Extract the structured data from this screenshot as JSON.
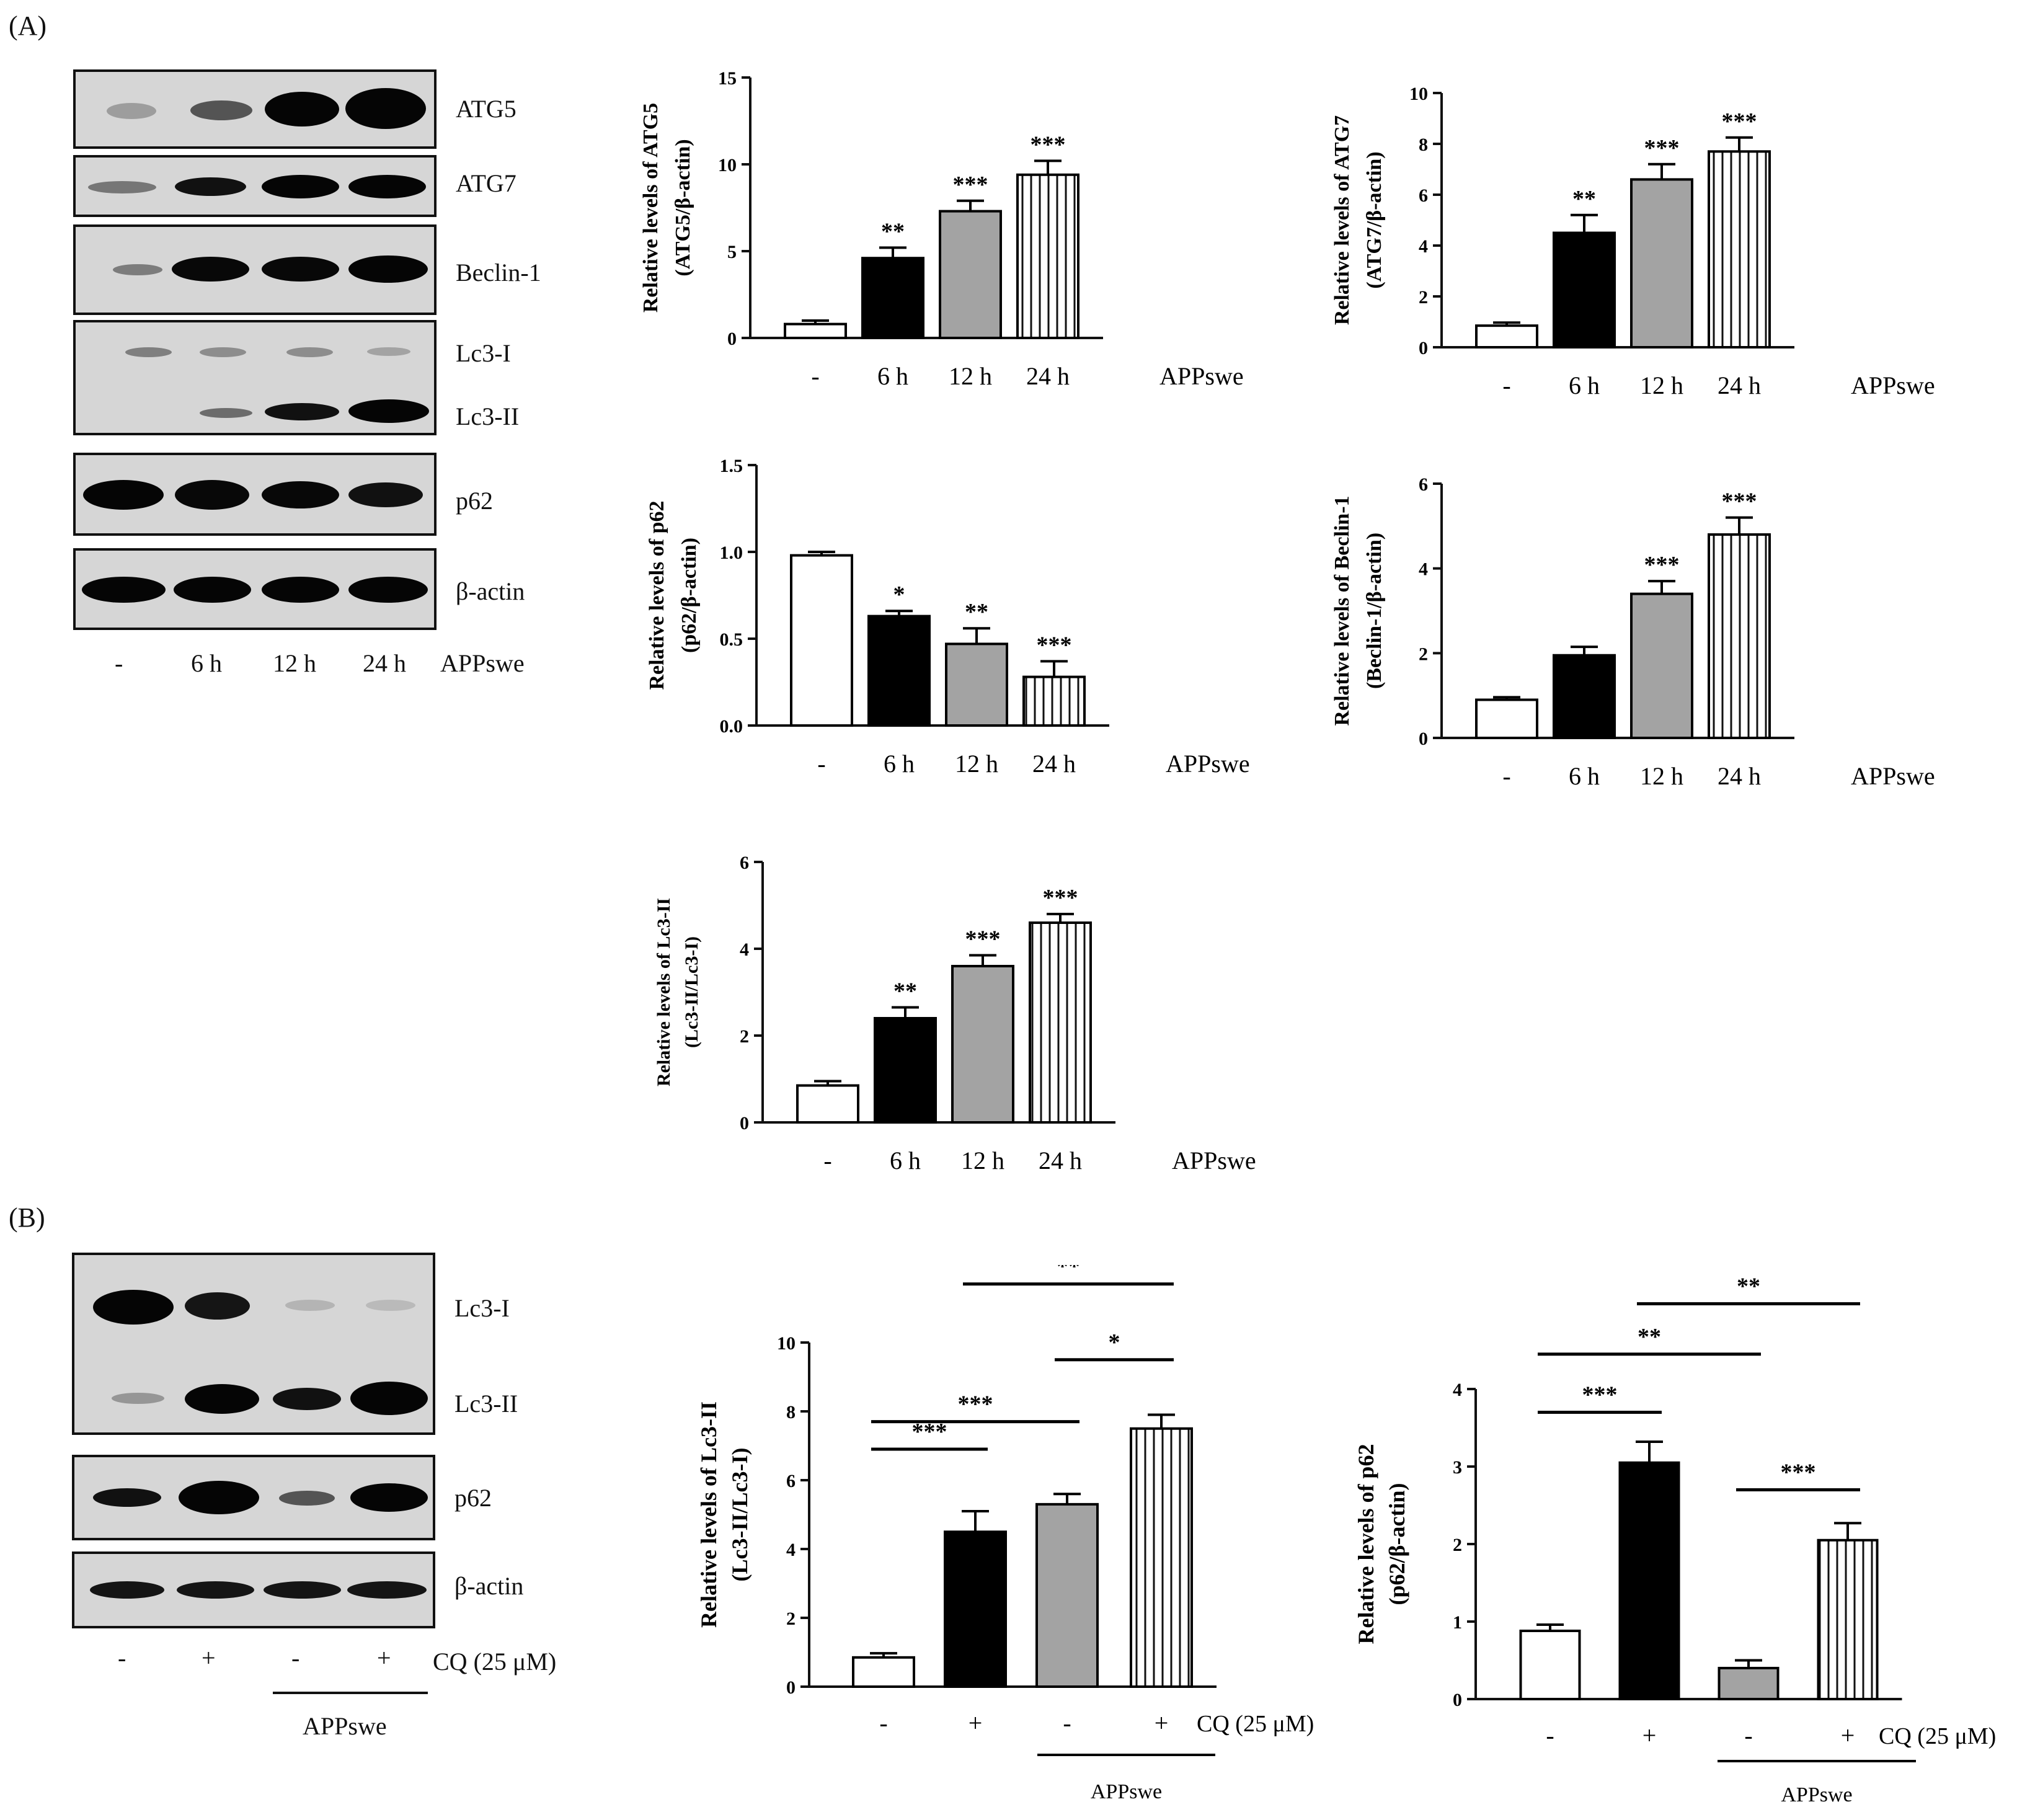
{
  "panels": {
    "a": "(A)",
    "b": "(B)"
  },
  "blotA": {
    "proteins": [
      "ATG5",
      "ATG7",
      "Beclin-1",
      "Lc3-I",
      "Lc3-II",
      "p62",
      "β-actin"
    ],
    "lanes": [
      "-",
      "6 h",
      "12 h",
      "24 h"
    ],
    "treatment": "APPswe"
  },
  "blotB": {
    "proteins": [
      "Lc3-I",
      "Lc3-II",
      "p62",
      "β-actin"
    ],
    "lanes": [
      "-",
      "+",
      "-",
      "+"
    ],
    "cq_label": "CQ (25 μM)",
    "group_label": "APPswe"
  },
  "colors": {
    "black": "#000000",
    "gray": "#a3a3a3",
    "white": "#ffffff",
    "axis": "#111111"
  },
  "chart_data": [
    {
      "id": "atg5",
      "type": "bar",
      "ylabel": [
        "Relative levels of ATG5",
        "(ATG5/β-actin)"
      ],
      "categories": [
        "-",
        "6 h",
        "12 h",
        "24 h"
      ],
      "values": [
        0.8,
        4.6,
        7.3,
        9.4
      ],
      "errors": [
        0.2,
        0.6,
        0.6,
        0.8
      ],
      "sig": [
        "",
        "**",
        "***",
        "***"
      ],
      "ylim": [
        0,
        15
      ],
      "yticks": [
        0,
        5,
        10,
        15
      ],
      "yticklabels": [
        "0",
        "5",
        "10",
        "15"
      ],
      "xlabel": "APPswe"
    },
    {
      "id": "atg7",
      "type": "bar",
      "ylabel": [
        "Relative levels of ATG7",
        "(ATG7/β-actin)"
      ],
      "categories": [
        "-",
        "6 h",
        "12 h",
        "24 h"
      ],
      "values": [
        0.85,
        4.5,
        6.6,
        7.7
      ],
      "errors": [
        0.12,
        0.7,
        0.6,
        0.55
      ],
      "sig": [
        "",
        "**",
        "***",
        "***"
      ],
      "ylim": [
        0,
        10
      ],
      "yticks": [
        0,
        2,
        4,
        6,
        8,
        10
      ],
      "yticklabels": [
        "0",
        "2",
        "4",
        "6",
        "8",
        "10"
      ],
      "xlabel": "APPswe"
    },
    {
      "id": "p62a",
      "type": "bar",
      "ylabel": [
        "Relative levels of p62",
        "(p62/β-actin)"
      ],
      "categories": [
        "-",
        "6 h",
        "12 h",
        "24 h"
      ],
      "values": [
        0.98,
        0.63,
        0.47,
        0.28
      ],
      "errors": [
        0.02,
        0.03,
        0.09,
        0.09
      ],
      "sig": [
        "",
        "*",
        "**",
        "***"
      ],
      "ylim": [
        0,
        1.5
      ],
      "yticks": [
        0,
        0.5,
        1.0,
        1.5
      ],
      "yticklabels": [
        "0.0",
        "0.5",
        "1.0",
        "1.5"
      ],
      "xlabel": "APPswe"
    },
    {
      "id": "beclin",
      "type": "bar",
      "ylabel": [
        "Relative levels of Beclin-1",
        "(Beclin-1/β-actin)"
      ],
      "categories": [
        "-",
        "6 h",
        "12 h",
        "24 h"
      ],
      "values": [
        0.9,
        1.95,
        3.4,
        4.8
      ],
      "errors": [
        0.06,
        0.2,
        0.3,
        0.4
      ],
      "sig": [
        "",
        "",
        "***",
        "***"
      ],
      "ylim": [
        0,
        6
      ],
      "yticks": [
        0,
        2,
        4,
        6
      ],
      "yticklabels": [
        "0",
        "2",
        "4",
        "6"
      ],
      "xlabel": "APPswe"
    },
    {
      "id": "lc3a",
      "type": "bar",
      "ylabel": [
        "Relative levels of Lc3-II",
        "(Lc3-II/Lc3-I)"
      ],
      "categories": [
        "-",
        "6 h",
        "12 h",
        "24 h"
      ],
      "values": [
        0.85,
        2.4,
        3.6,
        4.6
      ],
      "errors": [
        0.1,
        0.25,
        0.25,
        0.2
      ],
      "sig": [
        "",
        "**",
        "***",
        "***"
      ],
      "ylim": [
        0,
        6
      ],
      "yticks": [
        0,
        2,
        4,
        6
      ],
      "yticklabels": [
        "0",
        "2",
        "4",
        "6"
      ],
      "xlabel": "APPswe"
    },
    {
      "id": "lc3b",
      "type": "bar",
      "ylabel": [
        "Relative levels of Lc3-II",
        "(Lc3-II/Lc3-I)"
      ],
      "categories": [
        "-",
        "+",
        "-",
        "+"
      ],
      "values": [
        0.85,
        4.5,
        5.3,
        7.5
      ],
      "errors": [
        0.12,
        0.6,
        0.3,
        0.4
      ],
      "ylim": [
        0,
        10
      ],
      "yticks": [
        0,
        2,
        4,
        6,
        8,
        10
      ],
      "yticklabels": [
        "0",
        "2",
        "4",
        "6",
        "8",
        "10"
      ],
      "xlabel": "CQ (25 μM)",
      "group_label": "APPswe",
      "comparisons": [
        {
          "from": 0,
          "to": 1,
          "label": "***"
        },
        {
          "from": 0,
          "to": 2,
          "label": "***"
        },
        {
          "from": 2,
          "to": 3,
          "label": "*"
        },
        {
          "from": 1,
          "to": 3,
          "label": "**"
        }
      ]
    },
    {
      "id": "p62b",
      "type": "bar",
      "ylabel": [
        "Relative levels of p62",
        "(p62/β-actin)"
      ],
      "categories": [
        "-",
        "+",
        "-",
        "+"
      ],
      "values": [
        0.88,
        3.05,
        0.4,
        2.05
      ],
      "errors": [
        0.08,
        0.27,
        0.1,
        0.22
      ],
      "ylim": [
        0,
        4
      ],
      "yticks": [
        0,
        1,
        2,
        3,
        4
      ],
      "yticklabels": [
        "0",
        "1",
        "2",
        "3",
        "4"
      ],
      "xlabel": "CQ (25 μM)",
      "group_label": "APPswe",
      "comparisons": [
        {
          "from": 0,
          "to": 1,
          "label": "***"
        },
        {
          "from": 0,
          "to": 2,
          "label": "**"
        },
        {
          "from": 1,
          "to": 3,
          "label": "**"
        },
        {
          "from": 2,
          "to": 3,
          "label": "***"
        }
      ]
    }
  ]
}
